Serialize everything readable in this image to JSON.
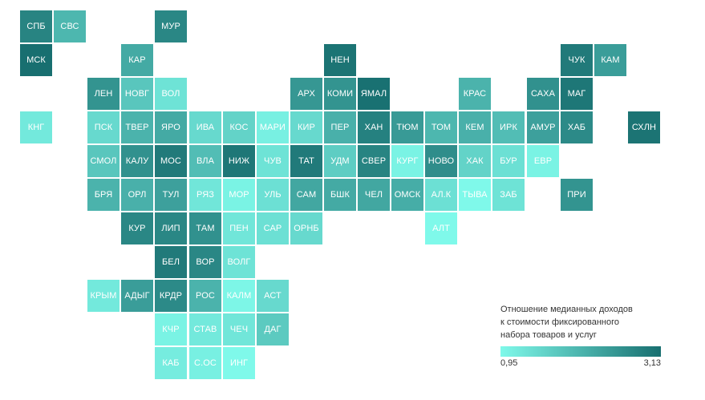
{
  "regions": [
    {
      "label": "СПБ",
      "col": 0,
      "row": 0,
      "value": 2.8
    },
    {
      "label": "СВС",
      "col": 1,
      "row": 0,
      "value": 2.0
    },
    {
      "label": "МУР",
      "col": 4,
      "row": 0,
      "value": 2.75
    },
    {
      "label": "МСК",
      "col": 0,
      "row": 1,
      "value": 3.13
    },
    {
      "label": "КАР",
      "col": 3,
      "row": 1,
      "value": 2.2
    },
    {
      "label": "НЕН",
      "col": 9,
      "row": 1,
      "value": 3.05
    },
    {
      "label": "ЧУК",
      "col": 16,
      "row": 1,
      "value": 2.95
    },
    {
      "label": "КАМ",
      "col": 17,
      "row": 1,
      "value": 2.4
    },
    {
      "label": "ЛЕН",
      "col": 2,
      "row": 2,
      "value": 2.55
    },
    {
      "label": "НОВГ",
      "col": 3,
      "row": 2,
      "value": 1.75
    },
    {
      "label": "ВОЛ",
      "col": 4,
      "row": 2,
      "value": 1.3
    },
    {
      "label": "АРХ",
      "col": 8,
      "row": 2,
      "value": 2.5
    },
    {
      "label": "КОМИ",
      "col": 9,
      "row": 2,
      "value": 2.55
    },
    {
      "label": "ЯМАЛ",
      "col": 10,
      "row": 2,
      "value": 3.1
    },
    {
      "label": "КРАС",
      "col": 13,
      "row": 2,
      "value": 2.05
    },
    {
      "label": "САХА",
      "col": 15,
      "row": 2,
      "value": 2.6
    },
    {
      "label": "МАГ",
      "col": 16,
      "row": 2,
      "value": 3.0
    },
    {
      "label": "КНГ",
      "col": 0,
      "row": 3,
      "value": 1.2
    },
    {
      "label": "ПСК",
      "col": 2,
      "row": 3,
      "value": 1.45
    },
    {
      "label": "ТВЕР",
      "col": 3,
      "row": 3,
      "value": 2.05
    },
    {
      "label": "ЯРО",
      "col": 4,
      "row": 3,
      "value": 2.2
    },
    {
      "label": "ИВА",
      "col": 5,
      "row": 3,
      "value": 1.45
    },
    {
      "label": "КОС",
      "col": 6,
      "row": 3,
      "value": 1.55
    },
    {
      "label": "МАРИ",
      "col": 7,
      "row": 3,
      "value": 1.1
    },
    {
      "label": "КИР",
      "col": 8,
      "row": 3,
      "value": 1.45
    },
    {
      "label": "ПЕР",
      "col": 9,
      "row": 3,
      "value": 2.1
    },
    {
      "label": "ХАН",
      "col": 10,
      "row": 3,
      "value": 2.85
    },
    {
      "label": "ТЮМ",
      "col": 11,
      "row": 3,
      "value": 2.45
    },
    {
      "label": "ТОМ",
      "col": 12,
      "row": 3,
      "value": 2.0
    },
    {
      "label": "КЕМ",
      "col": 13,
      "row": 3,
      "value": 2.1
    },
    {
      "label": "ИРК",
      "col": 14,
      "row": 3,
      "value": 1.9
    },
    {
      "label": "АМУР",
      "col": 15,
      "row": 3,
      "value": 2.35
    },
    {
      "label": "ХАБ",
      "col": 16,
      "row": 3,
      "value": 2.7
    },
    {
      "label": "СХЛН",
      "col": 18,
      "row": 3,
      "value": 3.05
    },
    {
      "label": "СМОЛ",
      "col": 2,
      "row": 4,
      "value": 1.75
    },
    {
      "label": "КАЛУ",
      "col": 3,
      "row": 4,
      "value": 2.6
    },
    {
      "label": "МОС",
      "col": 4,
      "row": 4,
      "value": 2.95
    },
    {
      "label": "ВЛА",
      "col": 5,
      "row": 4,
      "value": 1.9
    },
    {
      "label": "НИЖ",
      "col": 6,
      "row": 4,
      "value": 3.0
    },
    {
      "label": "ЧУВ",
      "col": 7,
      "row": 4,
      "value": 1.3
    },
    {
      "label": "ТАТ",
      "col": 8,
      "row": 4,
      "value": 2.95
    },
    {
      "label": "УДМ",
      "col": 9,
      "row": 4,
      "value": 1.65
    },
    {
      "label": "СВЕР",
      "col": 10,
      "row": 4,
      "value": 2.8
    },
    {
      "label": "КУРГ",
      "col": 11,
      "row": 4,
      "value": 1.05
    },
    {
      "label": "НОВО",
      "col": 12,
      "row": 4,
      "value": 2.65
    },
    {
      "label": "ХАК",
      "col": 13,
      "row": 4,
      "value": 1.55
    },
    {
      "label": "БУР",
      "col": 14,
      "row": 4,
      "value": 1.35
    },
    {
      "label": "ЕВР",
      "col": 15,
      "row": 4,
      "value": 1.05
    },
    {
      "label": "БРЯ",
      "col": 2,
      "row": 5,
      "value": 2.05
    },
    {
      "label": "ОРЛ",
      "col": 3,
      "row": 5,
      "value": 2.1
    },
    {
      "label": "ТУЛ",
      "col": 4,
      "row": 5,
      "value": 2.35
    },
    {
      "label": "РЯЗ",
      "col": 5,
      "row": 5,
      "value": 1.25
    },
    {
      "label": "МОР",
      "col": 6,
      "row": 5,
      "value": 1.05
    },
    {
      "label": "УЛЬ",
      "col": 7,
      "row": 5,
      "value": 1.35
    },
    {
      "label": "САМ",
      "col": 8,
      "row": 5,
      "value": 2.25
    },
    {
      "label": "БШК",
      "col": 9,
      "row": 5,
      "value": 2.2
    },
    {
      "label": "ЧЕЛ",
      "col": 10,
      "row": 5,
      "value": 2.25
    },
    {
      "label": "ОМСК",
      "col": 11,
      "row": 5,
      "value": 2.15
    },
    {
      "label": "АЛ.К",
      "col": 12,
      "row": 5,
      "value": 1.35
    },
    {
      "label": "ТЫВА",
      "col": 13,
      "row": 5,
      "value": 0.95
    },
    {
      "label": "ЗАБ",
      "col": 14,
      "row": 5,
      "value": 1.3
    },
    {
      "label": "ПРИ",
      "col": 16,
      "row": 5,
      "value": 2.55
    },
    {
      "label": "КУР",
      "col": 3,
      "row": 6,
      "value": 2.75
    },
    {
      "label": "ЛИП",
      "col": 4,
      "row": 6,
      "value": 2.75
    },
    {
      "label": "ТАМ",
      "col": 5,
      "row": 6,
      "value": 2.6
    },
    {
      "label": "ПЕН",
      "col": 6,
      "row": 6,
      "value": 1.25
    },
    {
      "label": "САР",
      "col": 7,
      "row": 6,
      "value": 1.35
    },
    {
      "label": "ОРНБ",
      "col": 8,
      "row": 6,
      "value": 1.45
    },
    {
      "label": "АЛТ",
      "col": 12,
      "row": 6,
      "value": 0.95
    },
    {
      "label": "БЕЛ",
      "col": 4,
      "row": 7,
      "value": 2.95
    },
    {
      "label": "ВОР",
      "col": 5,
      "row": 7,
      "value": 2.75
    },
    {
      "label": "ВОЛГ",
      "col": 6,
      "row": 7,
      "value": 1.3
    },
    {
      "label": "КРЫМ",
      "col": 2,
      "row": 8,
      "value": 1.2
    },
    {
      "label": "АДЫГ",
      "col": 3,
      "row": 8,
      "value": 2.4
    },
    {
      "label": "КРДР",
      "col": 4,
      "row": 8,
      "value": 2.7
    },
    {
      "label": "РОС",
      "col": 5,
      "row": 8,
      "value": 2.05
    },
    {
      "label": "КАЛМ",
      "col": 6,
      "row": 8,
      "value": 1.0
    },
    {
      "label": "АСТ",
      "col": 7,
      "row": 8,
      "value": 1.45
    },
    {
      "label": "КЧР",
      "col": 4,
      "row": 9,
      "value": 1.05
    },
    {
      "label": "СТАВ",
      "col": 5,
      "row": 9,
      "value": 1.2
    },
    {
      "label": "ЧЕЧ",
      "col": 6,
      "row": 9,
      "value": 1.25
    },
    {
      "label": "ДАГ",
      "col": 7,
      "row": 9,
      "value": 1.7
    },
    {
      "label": "КАБ",
      "col": 4,
      "row": 10,
      "value": 1.15
    },
    {
      "label": "С.ОС",
      "col": 5,
      "row": 10,
      "value": 1.1
    },
    {
      "label": "ИНГ",
      "col": 6,
      "row": 10,
      "value": 0.95
    }
  ],
  "legend": {
    "title_lines": [
      "Отношение медианных доходов",
      "к стоимости фиксированного",
      "набора товаров и услуг"
    ],
    "min_label": "0,95",
    "max_label": "3,13",
    "min_value": 0.95,
    "max_value": 3.13,
    "color_low": "#7ff9ea",
    "color_high": "#186f70"
  }
}
